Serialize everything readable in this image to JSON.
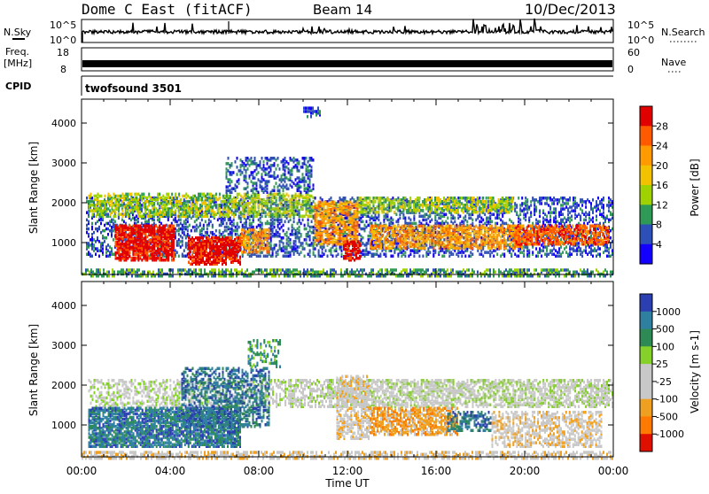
{
  "header": {
    "station": "Dome C East (fitACF)",
    "beam": "Beam 14",
    "date": "10/Dec/2013"
  },
  "strip_panels": {
    "nsky": {
      "label": "N.Sky",
      "ticks": [
        "10^5",
        "10^0"
      ],
      "right_ticks": [
        "10^5",
        "10^0"
      ],
      "right_label": "N.Search"
    },
    "freq": {
      "label_line1": "Freq.",
      "label_line2": "[MHz]",
      "ticks": [
        "18",
        "8"
      ],
      "right_ticks": [
        "60",
        "0"
      ],
      "right_label": "Nave"
    },
    "cpid": {
      "label": "CPID",
      "value": "twofsound 3501"
    }
  },
  "time_axis": {
    "label": "Time UT",
    "tick_labels": [
      "00:00",
      "04:00",
      "08:00",
      "12:00",
      "16:00",
      "20:00",
      "00:00"
    ]
  },
  "chart_data": [
    {
      "type": "heatmap",
      "quantity": "Power",
      "colorbar_label": "Power [dB]",
      "ylabel": "Slant Range [km]",
      "xlabel": "Time UT",
      "xlim_hours": [
        0,
        24
      ],
      "ylim": [
        200,
        4600
      ],
      "y_ticks": [
        1000,
        2000,
        3000,
        4000
      ],
      "colorbar_ticks": [
        "28",
        "24",
        "20",
        "16",
        "12",
        "8",
        "4"
      ],
      "colorbar_colors": [
        "#e00000",
        "#ff5a00",
        "#ff9a00",
        "#f2c200",
        "#9fd200",
        "#2e9a56",
        "#2d4fb8",
        "#1400ff"
      ],
      "regions": [
        {
          "t": [
            0.0,
            24.0
          ],
          "r": [
            200,
            400
          ],
          "level": 2,
          "density": 0.55
        },
        {
          "t": [
            0.2,
            24.0
          ],
          "r": [
            700,
            2200
          ],
          "level": 1,
          "density": 0.35
        },
        {
          "t": [
            0.3,
            10.5
          ],
          "r": [
            1700,
            2300
          ],
          "level": 3,
          "density": 0.45
        },
        {
          "t": [
            6.5,
            10.5
          ],
          "r": [
            2300,
            3200
          ],
          "level": 1,
          "density": 0.35
        },
        {
          "t": [
            1.5,
            4.2
          ],
          "r": [
            600,
            1500
          ],
          "level": 7,
          "density": 0.75
        },
        {
          "t": [
            4.8,
            7.2
          ],
          "r": [
            500,
            1200
          ],
          "level": 7,
          "density": 0.7
        },
        {
          "t": [
            7.2,
            8.5
          ],
          "r": [
            800,
            1400
          ],
          "level": 5,
          "density": 0.5
        },
        {
          "t": [
            10.5,
            12.5
          ],
          "r": [
            1000,
            2100
          ],
          "level": 5,
          "density": 0.55
        },
        {
          "t": [
            11.8,
            12.6
          ],
          "r": [
            600,
            1100
          ],
          "level": 7,
          "density": 0.6
        },
        {
          "t": [
            12.5,
            19.5
          ],
          "r": [
            1800,
            2200
          ],
          "level": 3,
          "density": 0.5
        },
        {
          "t": [
            13.0,
            20.0
          ],
          "r": [
            900,
            1500
          ],
          "level": 5,
          "density": 0.55
        },
        {
          "t": [
            19.5,
            23.8
          ],
          "r": [
            1000,
            1500
          ],
          "level": 6,
          "density": 0.55
        },
        {
          "t": [
            10.0,
            10.8
          ],
          "r": [
            4200,
            4500
          ],
          "level": 1,
          "density": 0.4
        }
      ]
    },
    {
      "type": "heatmap",
      "quantity": "Velocity",
      "colorbar_label": "Velocity [m s-1]",
      "ylabel": "Slant Range [km]",
      "xlabel": "Time UT",
      "xlim_hours": [
        0,
        24
      ],
      "ylim": [
        200,
        4600
      ],
      "y_ticks": [
        1000,
        2000,
        3000,
        4000
      ],
      "colorbar_ticks": [
        "1000",
        "500",
        "100",
        "25",
        "-25",
        "-100",
        "-500",
        "-1000"
      ],
      "colorbar_colors": [
        "#2b3fb0",
        "#2e7fa0",
        "#2e8a55",
        "#86d02a",
        "#c8c8c8",
        "#c8c8c8",
        "#f0a020",
        "#ff7a00",
        "#e01000"
      ],
      "regions": [
        {
          "t": [
            0.0,
            24.0
          ],
          "r": [
            200,
            400
          ],
          "level": 3,
          "density": 0.5
        },
        {
          "t": [
            0.3,
            11.0
          ],
          "r": [
            1500,
            2200
          ],
          "level": 4,
          "density": 0.4
        },
        {
          "t": [
            11.0,
            24.0
          ],
          "r": [
            1500,
            2200
          ],
          "level": 4,
          "density": 0.55
        },
        {
          "t": [
            0.3,
            7.2
          ],
          "r": [
            500,
            1500
          ],
          "level": 7,
          "density": 0.7
        },
        {
          "t": [
            4.5,
            8.5
          ],
          "r": [
            1000,
            2500
          ],
          "level": 7,
          "density": 0.45
        },
        {
          "t": [
            7.5,
            9.0
          ],
          "r": [
            2500,
            3200
          ],
          "level": 6,
          "density": 0.3
        },
        {
          "t": [
            11.5,
            13.0
          ],
          "r": [
            700,
            2300
          ],
          "level": 3,
          "density": 0.5
        },
        {
          "t": [
            13.0,
            17.0
          ],
          "r": [
            800,
            1500
          ],
          "level": 2,
          "density": 0.6
        },
        {
          "t": [
            16.5,
            18.5
          ],
          "r": [
            900,
            1400
          ],
          "level": 7,
          "density": 0.5
        },
        {
          "t": [
            18.5,
            23.5
          ],
          "r": [
            500,
            1400
          ],
          "level": 3,
          "density": 0.45
        }
      ]
    }
  ]
}
